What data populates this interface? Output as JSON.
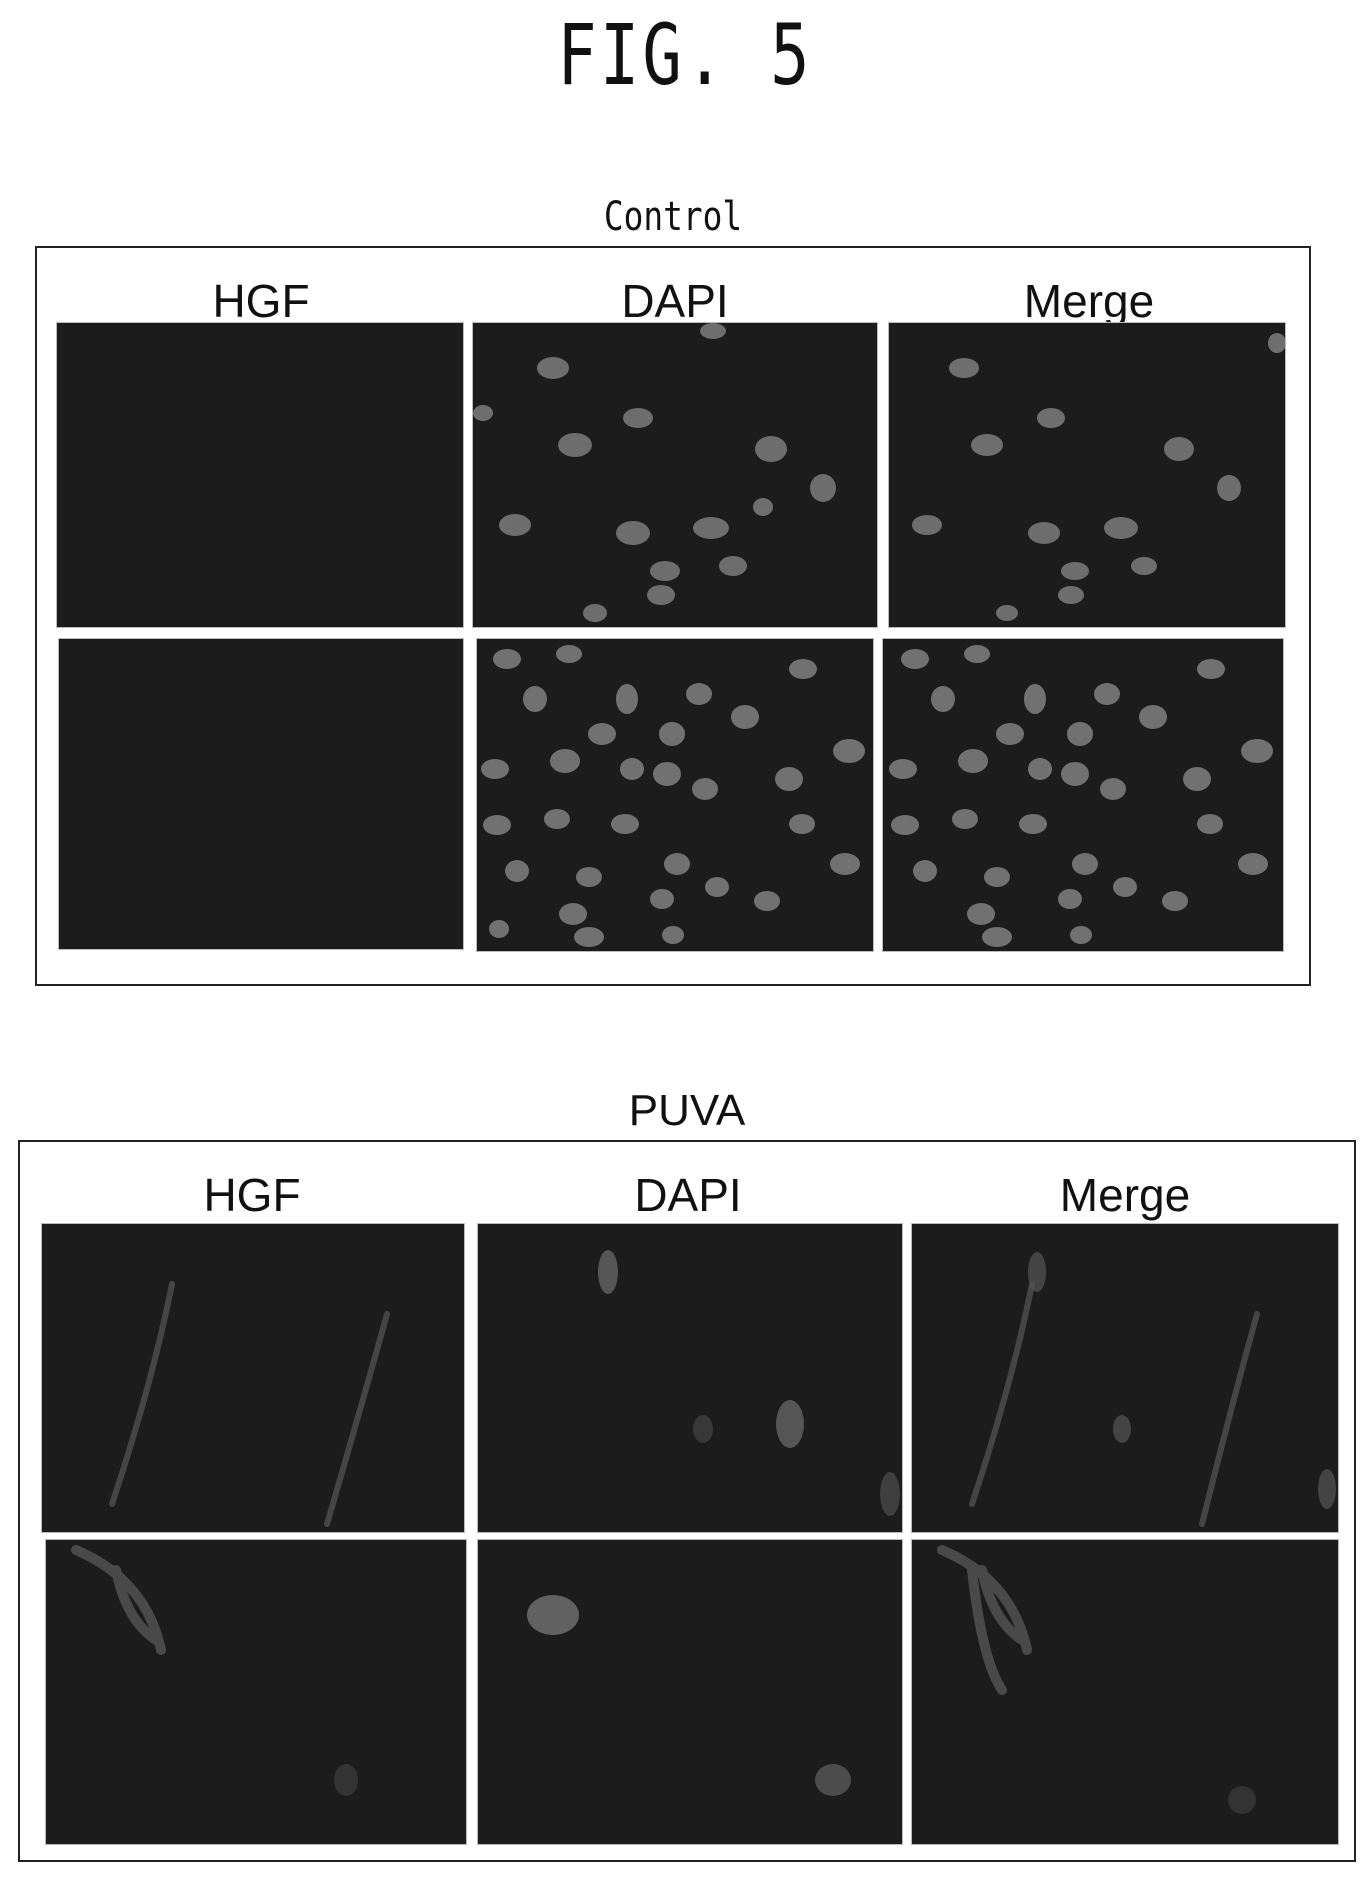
{
  "figure": {
    "title": "FIG. 5"
  },
  "panels": [
    {
      "title": "Control",
      "columns": [
        "HGF",
        "DAPI",
        "Merge"
      ]
    },
    {
      "title": "PUVA",
      "columns": [
        "HGF",
        "DAPI",
        "Merge"
      ]
    }
  ]
}
